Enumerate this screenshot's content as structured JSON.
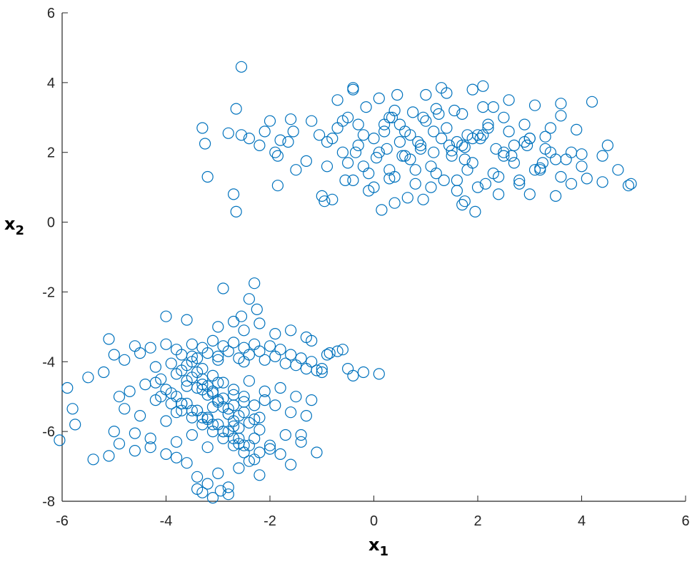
{
  "chart_data": {
    "type": "scatter",
    "title": "",
    "xlabel": "x",
    "xlabel_sub": "1",
    "ylabel": "x",
    "ylabel_sub": "2",
    "xlim": [
      -6,
      6
    ],
    "ylim": [
      -8,
      6
    ],
    "xticks": [
      -6,
      -4,
      -2,
      0,
      2,
      4,
      6
    ],
    "yticks": [
      -8,
      -6,
      -4,
      -2,
      0,
      2,
      4,
      6
    ],
    "xtick_labels": [
      "-6",
      "-4",
      "-2",
      "0",
      "2",
      "4",
      "6"
    ],
    "ytick_labels": [
      "-8",
      "-6",
      "-4",
      "-2",
      "0",
      "2",
      "4",
      "6"
    ],
    "grid": false,
    "marker": "open-circle",
    "color": "#0072BD",
    "series": [
      {
        "name": "",
        "x": [
          -2.55,
          -2.65,
          -3.3,
          -3.2,
          -3.25,
          -2.8,
          -2.55,
          -2.7,
          -2.65,
          -2.4,
          -2.2,
          -2.1,
          -2.0,
          -1.85,
          -1.8,
          -1.6,
          -1.55,
          -1.9,
          -1.85,
          -1.65,
          -1.5,
          -1.3,
          -1.2,
          -1.05,
          -1.0,
          -0.95,
          -0.9,
          -0.8,
          -0.7,
          -0.6,
          -0.55,
          -0.5,
          -0.4,
          -0.4,
          -0.35,
          -0.3,
          -0.2,
          -0.15,
          -0.1,
          0.0,
          0.05,
          0.1,
          0.15,
          0.2,
          0.3,
          0.35,
          0.4,
          0.45,
          0.5,
          0.6,
          0.65,
          0.7,
          0.75,
          0.8,
          0.9,
          0.95,
          1.0,
          1.1,
          1.15,
          1.2,
          1.3,
          1.35,
          1.4,
          1.5,
          1.55,
          1.6,
          1.7,
          1.75,
          1.8,
          1.9,
          1.95,
          2.0,
          2.1,
          2.15,
          2.2,
          2.3,
          2.4,
          2.5,
          2.6,
          2.7,
          2.8,
          2.9,
          3.0,
          3.1,
          3.2,
          3.3,
          3.4,
          3.5,
          3.6,
          3.7,
          3.8,
          3.9,
          4.0,
          4.1,
          4.2,
          4.4,
          4.5,
          4.7,
          4.9,
          4.95,
          -0.9,
          -0.8,
          -0.6,
          -0.5,
          -0.3,
          -0.1,
          0.1,
          0.3,
          0.5,
          0.7,
          0.9,
          1.1,
          1.3,
          1.5,
          1.7,
          1.9,
          2.1,
          2.3,
          2.5,
          2.7,
          2.9,
          3.1,
          3.3,
          3.5,
          -0.7,
          -0.2,
          0.2,
          0.6,
          1.0,
          1.4,
          1.8,
          2.2,
          2.6,
          3.0,
          3.4,
          3.8,
          -0.4,
          0.0,
          0.4,
          0.8,
          1.2,
          1.6,
          2.0,
          2.4,
          2.8,
          3.2,
          3.6,
          4.0,
          0.25,
          0.55,
          0.85,
          1.15,
          1.45,
          1.75,
          2.05,
          2.35,
          2.65,
          2.95,
          3.25,
          1.6,
          1.75,
          1.9,
          0.3,
          0.4,
          0.95,
          1.25,
          1.7,
          2.1,
          2.5,
          3.0,
          3.6,
          4.4,
          -2.55,
          -2.3,
          -2.25,
          -2.9,
          -2.4,
          -4.0,
          -3.6,
          -3.0,
          -2.7,
          -2.5,
          -2.2,
          -1.9,
          -1.6,
          -1.3,
          -1.2,
          -1.0,
          -0.9,
          -0.85,
          -0.7,
          -0.6,
          -0.5,
          -0.4,
          -0.2,
          0.1,
          -5.1,
          -5.0,
          -4.8,
          -4.6,
          -4.5,
          -4.3,
          -4.2,
          -4.0,
          -3.8,
          -3.7,
          -3.5,
          -3.4,
          -3.3,
          -3.2,
          -3.1,
          -3.0,
          -2.9,
          -2.8,
          -2.7,
          -2.6,
          -2.5,
          -2.4,
          -2.3,
          -2.2,
          -2.1,
          -2.0,
          -1.9,
          -1.8,
          -1.7,
          -1.6,
          -1.5,
          -1.4,
          -1.3,
          -1.2,
          -1.1,
          -1.0,
          -5.9,
          -5.8,
          -5.75,
          -5.5,
          -5.4,
          -5.2,
          -5.0,
          -4.9,
          -4.8,
          -4.7,
          -4.6,
          -4.5,
          -4.4,
          -4.3,
          -4.2,
          -4.1,
          -4.0,
          -3.9,
          -3.8,
          -3.7,
          -3.6,
          -3.5,
          -3.4,
          -3.3,
          -3.2,
          -3.1,
          -3.0,
          -2.9,
          -2.8,
          -2.7,
          -2.6,
          -2.5,
          -2.4,
          -2.3,
          -2.2,
          -2.1,
          -2.0,
          -1.9,
          -1.8,
          -1.7,
          -1.6,
          -1.5,
          -1.4,
          -1.3,
          -1.2,
          -1.1,
          -6.05,
          -5.1,
          -4.9,
          -4.6,
          -4.3,
          -4.0,
          -3.8,
          -3.6,
          -3.4,
          -3.2,
          -3.0,
          -2.8,
          -2.6,
          -2.4,
          -2.2,
          -2.0,
          -1.8,
          -1.6,
          -1.4,
          -3.6,
          -3.4,
          -3.3,
          -3.2,
          -3.1,
          -3.0,
          -2.9,
          -2.8,
          -2.7,
          -2.6,
          -3.5,
          -3.3,
          -3.1,
          -2.9,
          -2.7,
          -2.5,
          -3.7,
          -3.5,
          -3.3,
          -3.1,
          -2.9,
          -2.7,
          -2.5,
          -2.3,
          -3.8,
          -3.6,
          -3.4,
          -3.2,
          -3.0,
          -2.8,
          -2.6,
          -2.4,
          -2.2,
          -3.9,
          -3.7,
          -3.5,
          -3.3,
          -3.1,
          -2.9,
          -2.7,
          -2.5,
          -2.3,
          -4.1,
          -3.9,
          -3.7,
          -3.5,
          -3.3,
          -3.1,
          -2.9,
          -2.7,
          -2.5,
          -2.3,
          -2.1,
          -4.2,
          -4.0,
          -3.8,
          -3.6,
          -3.4,
          -3.2,
          -3.0,
          -2.8,
          -2.6,
          -2.4,
          -2.2,
          -3.5,
          -3.0,
          -2.5,
          -3.8,
          -3.2,
          -2.7,
          -3.3,
          -2.8,
          -3.4,
          -3.1,
          -2.95
        ],
        "y": [
          4.45,
          3.25,
          2.7,
          1.3,
          2.25,
          2.55,
          2.5,
          0.8,
          0.3,
          2.4,
          2.2,
          2.6,
          2.9,
          1.9,
          2.35,
          2.95,
          2.6,
          2.0,
          1.05,
          2.3,
          1.5,
          1.75,
          2.9,
          2.5,
          0.75,
          0.6,
          2.3,
          0.65,
          3.5,
          2.9,
          1.2,
          3.0,
          3.85,
          3.8,
          2.0,
          2.8,
          1.6,
          3.3,
          0.9,
          2.4,
          1.85,
          3.55,
          0.35,
          2.6,
          1.25,
          3.0,
          0.55,
          3.65,
          2.8,
          1.9,
          0.7,
          2.5,
          3.15,
          1.5,
          2.2,
          0.65,
          3.65,
          1.0,
          2.6,
          3.25,
          3.85,
          1.2,
          3.7,
          2.05,
          3.2,
          0.9,
          3.1,
          0.6,
          1.5,
          3.8,
          0.3,
          2.5,
          3.9,
          1.1,
          2.7,
          3.3,
          0.8,
          1.9,
          3.5,
          2.2,
          1.2,
          2.8,
          0.8,
          3.35,
          1.55,
          2.45,
          2.0,
          0.75,
          3.4,
          1.8,
          1.1,
          2.65,
          1.95,
          1.25,
          3.45,
          1.15,
          2.2,
          1.5,
          1.05,
          1.1,
          1.6,
          2.4,
          2.0,
          1.7,
          2.2,
          1.4,
          2.0,
          1.5,
          2.3,
          1.8,
          2.1,
          1.6,
          2.4,
          1.9,
          2.2,
          1.7,
          2.5,
          1.4,
          2.0,
          1.7,
          2.3,
          1.5,
          2.1,
          1.8,
          2.7,
          2.5,
          2.8,
          2.6,
          2.9,
          2.7,
          2.5,
          2.8,
          2.6,
          2.4,
          2.7,
          2.0,
          1.2,
          1.0,
          1.3,
          1.1,
          1.4,
          1.2,
          1.0,
          1.3,
          1.1,
          1.5,
          1.3,
          1.6,
          2.1,
          1.9,
          2.3,
          2.0,
          2.2,
          1.8,
          2.4,
          2.1,
          1.9,
          2.2,
          1.7,
          2.3,
          2.15,
          2.4,
          3.0,
          3.2,
          3.0,
          3.1,
          0.5,
          3.3,
          3.0,
          2.4,
          3.05,
          1.9,
          -2.7,
          -1.75,
          -2.5,
          -1.9,
          -2.2,
          -2.7,
          -2.8,
          -3.0,
          -2.85,
          -3.1,
          -2.9,
          -3.2,
          -3.1,
          -3.3,
          -3.4,
          -4.2,
          -3.8,
          -3.75,
          -3.7,
          -3.65,
          -4.2,
          -4.4,
          -4.3,
          -4.35,
          -3.35,
          -3.8,
          -3.95,
          -3.55,
          -3.75,
          -3.6,
          -4.15,
          -3.5,
          -3.65,
          -3.8,
          -3.5,
          -3.9,
          -3.6,
          -3.75,
          -3.4,
          -3.85,
          -3.55,
          -3.7,
          -3.45,
          -3.9,
          -3.6,
          -3.8,
          -3.5,
          -3.7,
          -3.95,
          -3.55,
          -3.85,
          -3.65,
          -4.05,
          -3.8,
          -4.1,
          -3.9,
          -4.2,
          -4.0,
          -4.25,
          -4.3,
          -4.75,
          -5.35,
          -5.8,
          -4.45,
          -6.8,
          -4.3,
          -6.0,
          -5.0,
          -5.35,
          -4.85,
          -6.05,
          -5.55,
          -4.65,
          -6.2,
          -5.1,
          -4.5,
          -5.7,
          -4.9,
          -6.3,
          -5.2,
          -4.7,
          -6.1,
          -5.4,
          -4.8,
          -6.45,
          -5.3,
          -4.6,
          -6.0,
          -5.5,
          -4.95,
          -6.35,
          -5.15,
          -4.55,
          -6.2,
          -5.6,
          -4.85,
          -6.5,
          -5.25,
          -4.75,
          -6.1,
          -5.45,
          -5.0,
          -6.3,
          -5.55,
          -5.1,
          -6.6,
          -6.25,
          -6.7,
          -6.35,
          -6.55,
          -6.45,
          -6.65,
          -6.75,
          -6.9,
          -7.3,
          -7.5,
          -7.2,
          -7.6,
          -7.05,
          -6.85,
          -7.25,
          -6.4,
          -6.65,
          -6.95,
          -6.1,
          -4.1,
          -4.3,
          -4.5,
          -4.7,
          -4.9,
          -5.1,
          -5.3,
          -5.5,
          -5.7,
          -5.9,
          -4.0,
          -4.2,
          -4.4,
          -4.6,
          -4.8,
          -5.0,
          -5.2,
          -5.4,
          -5.6,
          -5.8,
          -6.0,
          -6.2,
          -6.4,
          -5.25,
          -4.35,
          -4.55,
          -4.75,
          -4.95,
          -5.15,
          -5.35,
          -5.55,
          -5.75,
          -5.95,
          -4.05,
          -4.25,
          -4.45,
          -4.65,
          -4.85,
          -5.05,
          -5.25,
          -5.45,
          -5.65,
          -5.0,
          -5.2,
          -5.4,
          -5.6,
          -5.8,
          -6.0,
          -6.2,
          -6.4,
          -6.6,
          -6.8,
          -5.1,
          -4.6,
          -4.8,
          -5.0,
          -5.2,
          -5.4,
          -5.6,
          -5.8,
          -6.0,
          -6.2,
          -6.4,
          -6.6,
          -3.85,
          -3.95,
          -4.0,
          -5.45,
          -5.65,
          -5.85,
          -7.75,
          -7.8,
          -7.65,
          -7.9,
          -7.7
        ]
      }
    ]
  }
}
